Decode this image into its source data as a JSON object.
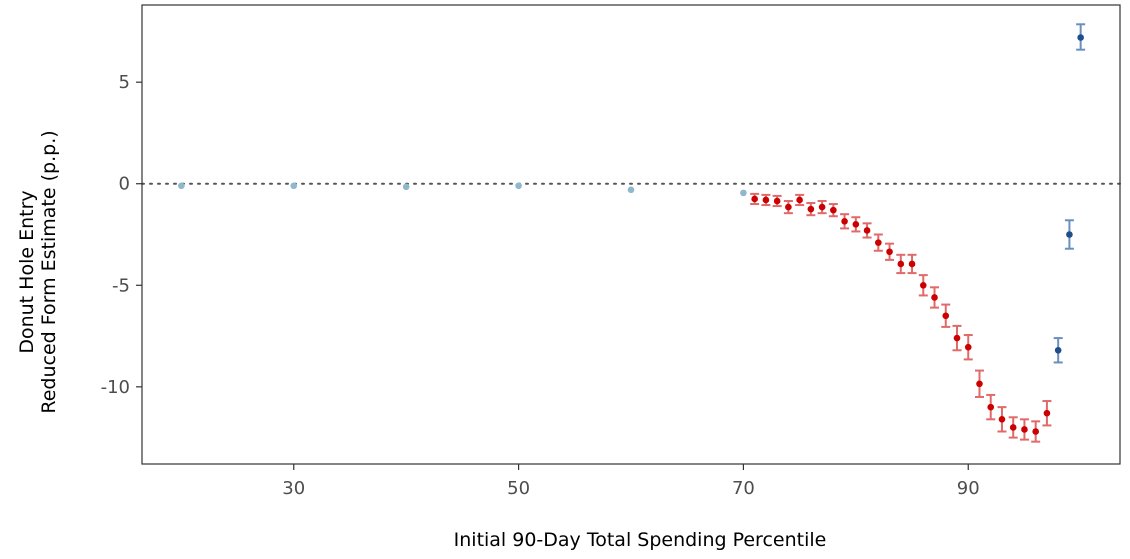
{
  "chart_data": {
    "type": "scatter",
    "title": "",
    "xlabel": "Initial 90-Day Total Spending Percentile",
    "ylabel_lines": [
      "Donut Hole Entry",
      "Reduced Form Estimate (p.p.)"
    ],
    "xlim": [
      16.5,
      103.5
    ],
    "ylim": [
      -13.8,
      8.8
    ],
    "x_ticks": [
      {
        "value": 30,
        "label": "30"
      },
      {
        "value": 50,
        "label": "50"
      },
      {
        "value": 70,
        "label": "70"
      },
      {
        "value": 90,
        "label": "90"
      }
    ],
    "y_ticks": [
      {
        "value": 5,
        "label": "5"
      },
      {
        "value": 0,
        "label": "0"
      },
      {
        "value": -5,
        "label": "-5"
      },
      {
        "value": -10,
        "label": "-10"
      }
    ],
    "reference_line": {
      "y": 0,
      "style": "dotted",
      "color": "#555555"
    },
    "grid": false,
    "legend": "none",
    "series": [
      {
        "color": "#8fb8cc",
        "error_color": "#8fb8cc",
        "points": [
          {
            "x": 20,
            "y": -0.1,
            "lo": -0.1,
            "hi": -0.1
          },
          {
            "x": 30,
            "y": -0.1,
            "lo": -0.1,
            "hi": -0.1
          },
          {
            "x": 40,
            "y": -0.15,
            "lo": -0.15,
            "hi": -0.15
          },
          {
            "x": 50,
            "y": -0.1,
            "lo": -0.1,
            "hi": -0.1
          },
          {
            "x": 60,
            "y": -0.3,
            "lo": -0.3,
            "hi": -0.3
          },
          {
            "x": 70,
            "y": -0.45,
            "lo": -0.45,
            "hi": -0.45
          }
        ]
      },
      {
        "color": "#cc0000",
        "error_color": "#e06a6a",
        "points": [
          {
            "x": 71,
            "y": -0.75,
            "lo": -1.0,
            "hi": -0.5
          },
          {
            "x": 72,
            "y": -0.8,
            "lo": -1.05,
            "hi": -0.55
          },
          {
            "x": 73,
            "y": -0.85,
            "lo": -1.1,
            "hi": -0.6
          },
          {
            "x": 74,
            "y": -1.15,
            "lo": -1.45,
            "hi": -0.85
          },
          {
            "x": 75,
            "y": -0.8,
            "lo": -1.05,
            "hi": -0.55
          },
          {
            "x": 76,
            "y": -1.25,
            "lo": -1.55,
            "hi": -0.95
          },
          {
            "x": 77,
            "y": -1.15,
            "lo": -1.45,
            "hi": -0.85
          },
          {
            "x": 78,
            "y": -1.3,
            "lo": -1.6,
            "hi": -1.0
          },
          {
            "x": 79,
            "y": -1.85,
            "lo": -2.2,
            "hi": -1.5
          },
          {
            "x": 80,
            "y": -2.0,
            "lo": -2.35,
            "hi": -1.65
          },
          {
            "x": 81,
            "y": -2.3,
            "lo": -2.65,
            "hi": -1.95
          },
          {
            "x": 82,
            "y": -2.9,
            "lo": -3.3,
            "hi": -2.5
          },
          {
            "x": 83,
            "y": -3.35,
            "lo": -3.75,
            "hi": -2.95
          },
          {
            "x": 84,
            "y": -3.95,
            "lo": -4.4,
            "hi": -3.5
          },
          {
            "x": 85,
            "y": -3.95,
            "lo": -4.4,
            "hi": -3.5
          },
          {
            "x": 86,
            "y": -5.0,
            "lo": -5.5,
            "hi": -4.5
          },
          {
            "x": 87,
            "y": -5.6,
            "lo": -6.1,
            "hi": -5.1
          },
          {
            "x": 88,
            "y": -6.5,
            "lo": -7.05,
            "hi": -5.95
          },
          {
            "x": 89,
            "y": -7.6,
            "lo": -8.2,
            "hi": -7.0
          },
          {
            "x": 90,
            "y": -8.05,
            "lo": -8.65,
            "hi": -7.45
          },
          {
            "x": 91,
            "y": -9.85,
            "lo": -10.5,
            "hi": -9.2
          },
          {
            "x": 92,
            "y": -11.0,
            "lo": -11.6,
            "hi": -10.4
          },
          {
            "x": 93,
            "y": -11.6,
            "lo": -12.2,
            "hi": -11.0
          },
          {
            "x": 94,
            "y": -12.0,
            "lo": -12.5,
            "hi": -11.5
          },
          {
            "x": 95,
            "y": -12.1,
            "lo": -12.6,
            "hi": -11.6
          },
          {
            "x": 96,
            "y": -12.2,
            "lo": -12.7,
            "hi": -11.7
          },
          {
            "x": 97,
            "y": -11.3,
            "lo": -11.9,
            "hi": -10.7
          }
        ]
      },
      {
        "color": "#1f4e8c",
        "error_color": "#6a8fbf",
        "points": [
          {
            "x": 98,
            "y": -8.2,
            "lo": -8.8,
            "hi": -7.6
          },
          {
            "x": 99,
            "y": -2.5,
            "lo": -3.2,
            "hi": -1.8
          },
          {
            "x": 100,
            "y": 7.2,
            "lo": 6.6,
            "hi": 7.85
          }
        ]
      }
    ]
  }
}
